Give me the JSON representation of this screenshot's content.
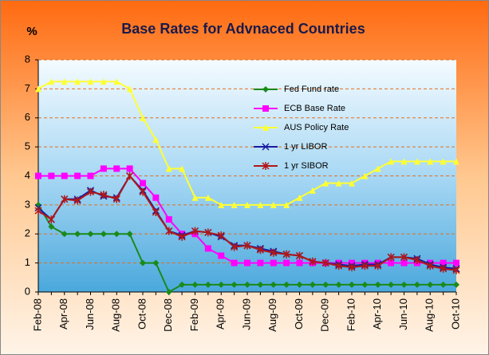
{
  "chart_data": {
    "type": "line",
    "title": "Base Rates for Advnaced Countries",
    "y_label": "%",
    "categories": [
      "Feb-08",
      null,
      "Apr-08",
      null,
      "Jun-08",
      null,
      "Aug-08",
      null,
      "Oct-08",
      null,
      "Dec-08",
      null,
      "Feb-09",
      null,
      "Apr-09",
      null,
      "Jun-09",
      null,
      "Aug-09",
      null,
      "Oct-09",
      null,
      "Dec-09",
      null,
      "Feb-10",
      null,
      "Apr-10",
      null,
      "Jun-10",
      null,
      "Aug-10",
      null,
      "Oct-10"
    ],
    "series": [
      {
        "name": "Fed Fund rate",
        "color": "#1a8a1a",
        "marker": "diamond",
        "values": [
          3,
          2.25,
          2,
          2,
          2,
          2,
          2,
          2,
          1,
          1,
          0,
          0.25,
          0.25,
          0.25,
          0.25,
          0.25,
          0.25,
          0.25,
          0.25,
          0.25,
          0.25,
          0.25,
          0.25,
          0.25,
          0.25,
          0.25,
          0.25,
          0.25,
          0.25,
          0.25,
          0.25,
          0.25,
          0.25
        ]
      },
      {
        "name": "ECB Base Rate",
        "color": "#ff00ff",
        "marker": "square",
        "values": [
          4,
          4,
          4,
          4,
          4,
          4.25,
          4.25,
          4.25,
          3.75,
          3.25,
          2.5,
          2,
          2,
          1.5,
          1.25,
          1,
          1,
          1,
          1,
          1,
          1,
          1,
          1,
          1,
          1,
          1,
          1,
          1,
          1,
          1,
          1,
          1,
          1
        ]
      },
      {
        "name": "AUS Policy Rate",
        "color": "#ffff33",
        "marker": "triangle",
        "values": [
          7,
          7.25,
          7.25,
          7.25,
          7.25,
          7.25,
          7.25,
          7,
          6,
          5.25,
          4.25,
          4.25,
          3.25,
          3.25,
          3,
          3,
          3,
          3,
          3,
          3,
          3.25,
          3.5,
          3.75,
          3.75,
          3.75,
          4,
          4.25,
          4.5,
          4.5,
          4.5,
          4.5,
          4.5,
          4.5
        ]
      },
      {
        "name": "1 yr LIBOR",
        "color": "#1a1aa0",
        "marker": "x",
        "values": [
          2.9,
          2.5,
          3.2,
          3.2,
          3.5,
          3.3,
          3.25,
          4,
          3.5,
          2.8,
          2.1,
          1.95,
          2.1,
          2.05,
          1.9,
          1.6,
          1.6,
          1.5,
          1.4,
          1.3,
          1.25,
          1.05,
          1,
          0.95,
          0.9,
          0.95,
          0.95,
          1.2,
          1.2,
          1.15,
          0.95,
          0.85,
          0.8
        ]
      },
      {
        "name": "1 yr SIBOR",
        "color": "#b01818",
        "marker": "star",
        "values": [
          2.8,
          2.5,
          3.2,
          3.15,
          3.45,
          3.35,
          3.2,
          4,
          3.45,
          2.75,
          2.1,
          1.9,
          2.1,
          2.05,
          1.95,
          1.55,
          1.6,
          1.45,
          1.35,
          1.3,
          1.25,
          1.05,
          1,
          0.9,
          0.85,
          0.9,
          0.9,
          1.2,
          1.2,
          1.1,
          0.9,
          0.8,
          0.75
        ]
      }
    ],
    "ylim": [
      0,
      8
    ],
    "yticks": [
      0,
      1,
      2,
      3,
      4,
      5,
      6,
      7,
      8
    ],
    "grid": true
  }
}
